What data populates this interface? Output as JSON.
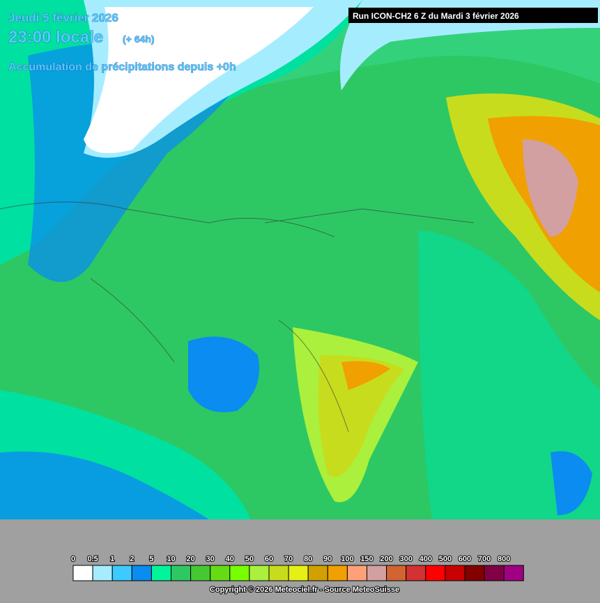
{
  "header": {
    "date": "Jeudi 5 février 2026",
    "time": "23:00 locale",
    "offset": "(+ 64h)",
    "subtitle": "Accumulation de précipitations depuis +0h",
    "run": "Run ICON-CH2 6 Z du Mardi 3 février 2026"
  },
  "legend": {
    "items": [
      {
        "label": "0",
        "color": "#ffffff"
      },
      {
        "label": "0.5",
        "color": "#a6ecff"
      },
      {
        "label": "1",
        "color": "#3ccaff"
      },
      {
        "label": "2",
        "color": "#0a8cf0"
      },
      {
        "label": "5",
        "color": "#00f59a"
      },
      {
        "label": "10",
        "color": "#2dc864"
      },
      {
        "label": "20",
        "color": "#46c832"
      },
      {
        "label": "30",
        "color": "#64dc14"
      },
      {
        "label": "40",
        "color": "#78ff00"
      },
      {
        "label": "50",
        "color": "#aaf03c"
      },
      {
        "label": "60",
        "color": "#c8dc1e"
      },
      {
        "label": "70",
        "color": "#e6f014"
      },
      {
        "label": "80",
        "color": "#d2a000"
      },
      {
        "label": "90",
        "color": "#f0a000"
      },
      {
        "label": "100",
        "color": "#ffa078"
      },
      {
        "label": "150",
        "color": "#d2a0a0"
      },
      {
        "label": "200",
        "color": "#d26432"
      },
      {
        "label": "300",
        "color": "#d23232"
      },
      {
        "label": "400",
        "color": "#ff0000"
      },
      {
        "label": "500",
        "color": "#c80000"
      },
      {
        "label": "600",
        "color": "#820000"
      },
      {
        "label": "700",
        "color": "#820046"
      },
      {
        "label": "800",
        "color": "#a00082"
      }
    ]
  },
  "footer": {
    "copyright": "Copyright © 2026 Meteociel.fr - Source MeteoSuisse"
  }
}
